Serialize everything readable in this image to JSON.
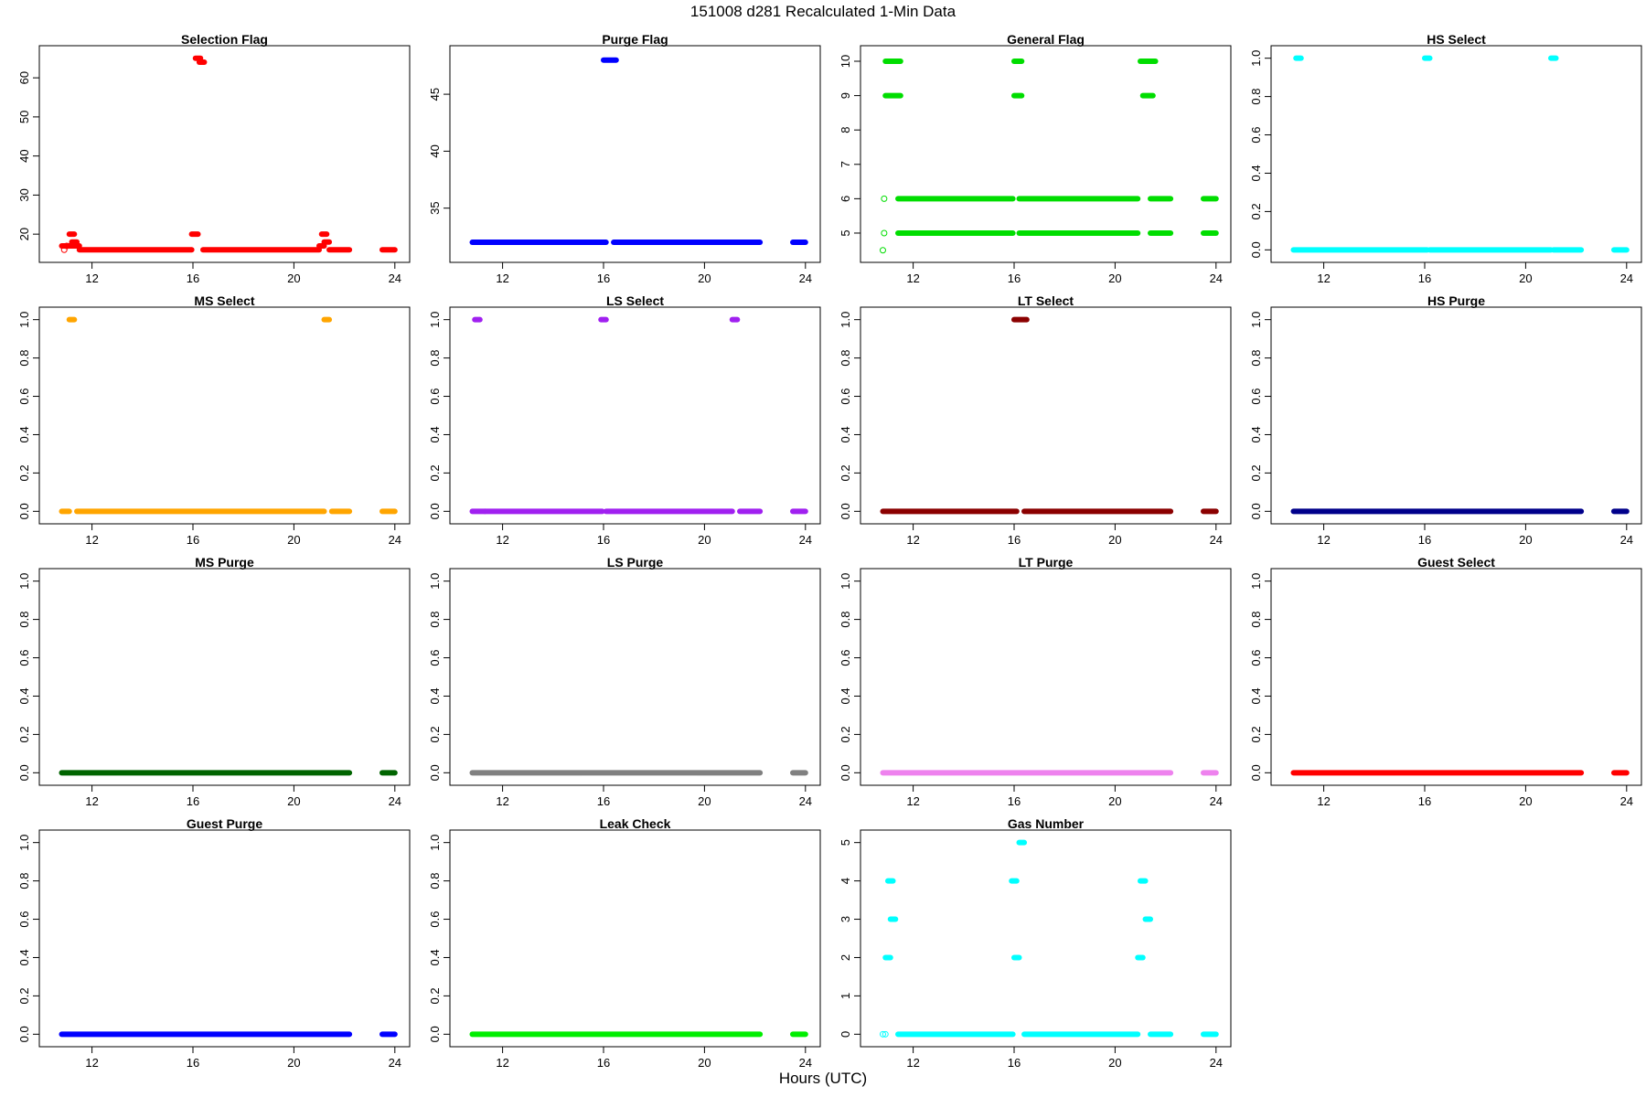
{
  "title": "151008   d281   Recalculated 1-Min Data",
  "xlabel": "Hours (UTC)",
  "chart_data": [
    {
      "type": "scatter",
      "title": "Selection Flag",
      "color": "#ff0000",
      "xlim": [
        10.5,
        24
      ],
      "ylim": [
        15,
        66
      ],
      "x_ticks": [
        12,
        16,
        20,
        24
      ],
      "y_ticks": [
        20,
        30,
        40,
        50,
        60
      ],
      "segments": [
        {
          "x0": 10.8,
          "x1": 11.5,
          "y": 17
        },
        {
          "x0": 11.5,
          "x1": 15.95,
          "y": 16
        },
        {
          "x0": 16.4,
          "x1": 21.0,
          "y": 16
        },
        {
          "x0": 21.4,
          "x1": 22.2,
          "y": 16
        },
        {
          "x0": 23.5,
          "x1": 24.0,
          "y": 16
        },
        {
          "x0": 11.1,
          "x1": 11.3,
          "y": 20
        },
        {
          "x0": 11.2,
          "x1": 11.4,
          "y": 18
        },
        {
          "x0": 15.95,
          "x1": 16.2,
          "y": 20
        },
        {
          "x0": 16.1,
          "x1": 16.3,
          "y": 65
        },
        {
          "x0": 16.25,
          "x1": 16.45,
          "y": 64
        },
        {
          "x0": 21.0,
          "x1": 21.2,
          "y": 17
        },
        {
          "x0": 21.1,
          "x1": 21.3,
          "y": 20
        },
        {
          "x0": 21.2,
          "x1": 21.4,
          "y": 18
        }
      ],
      "points": [
        [
          10.9,
          16
        ],
        [
          11.0,
          17
        ]
      ]
    },
    {
      "type": "scatter",
      "title": "Purge Flag",
      "color": "#0000ff",
      "xlim": [
        10.5,
        24
      ],
      "ylim": [
        31,
        48.5
      ],
      "x_ticks": [
        12,
        16,
        20,
        24
      ],
      "y_ticks": [
        35,
        40,
        45
      ],
      "segments": [
        {
          "x0": 10.8,
          "x1": 16.1,
          "y": 32
        },
        {
          "x0": 16.4,
          "x1": 22.2,
          "y": 32
        },
        {
          "x0": 23.5,
          "x1": 24.0,
          "y": 32
        },
        {
          "x0": 16.0,
          "x1": 16.5,
          "y": 48
        }
      ],
      "points": []
    },
    {
      "type": "scatter",
      "title": "General Flag",
      "color": "#00dd00",
      "xlim": [
        10.5,
        24
      ],
      "ylim": [
        4.4,
        10.2
      ],
      "x_ticks": [
        12,
        16,
        20,
        24
      ],
      "y_ticks": [
        5,
        6,
        7,
        8,
        9,
        10
      ],
      "segments": [
        {
          "x0": 10.9,
          "x1": 11.5,
          "y": 10
        },
        {
          "x0": 10.9,
          "x1": 11.5,
          "y": 9
        },
        {
          "x0": 16.0,
          "x1": 16.3,
          "y": 10
        },
        {
          "x0": 16.0,
          "x1": 16.3,
          "y": 9
        },
        {
          "x0": 21.0,
          "x1": 21.6,
          "y": 10
        },
        {
          "x0": 21.1,
          "x1": 21.5,
          "y": 9
        },
        {
          "x0": 11.4,
          "x1": 15.95,
          "y": 6
        },
        {
          "x0": 16.2,
          "x1": 20.9,
          "y": 6
        },
        {
          "x0": 21.4,
          "x1": 22.2,
          "y": 6
        },
        {
          "x0": 23.5,
          "x1": 24.0,
          "y": 6
        },
        {
          "x0": 11.4,
          "x1": 15.95,
          "y": 5
        },
        {
          "x0": 16.2,
          "x1": 20.9,
          "y": 5
        },
        {
          "x0": 21.4,
          "x1": 22.2,
          "y": 5
        },
        {
          "x0": 23.5,
          "x1": 24.0,
          "y": 5
        }
      ],
      "points": [
        [
          10.85,
          6
        ],
        [
          10.85,
          5
        ],
        [
          10.8,
          4.5
        ]
      ]
    },
    {
      "type": "scatter",
      "title": "HS Select",
      "color": "#00ffff",
      "xlim": [
        10.5,
        24
      ],
      "ylim": [
        -0.02,
        1.02
      ],
      "x_ticks": [
        12,
        16,
        20,
        24
      ],
      "y_ticks": [
        0.0,
        0.2,
        0.4,
        0.6,
        0.8,
        1.0
      ],
      "segments": [
        {
          "x0": 10.8,
          "x1": 16.1,
          "y": 0
        },
        {
          "x0": 16.2,
          "x1": 21.0,
          "y": 0
        },
        {
          "x0": 21.1,
          "x1": 22.2,
          "y": 0
        },
        {
          "x0": 23.5,
          "x1": 24.0,
          "y": 0
        },
        {
          "x0": 10.9,
          "x1": 11.1,
          "y": 1
        },
        {
          "x0": 16.0,
          "x1": 16.2,
          "y": 1
        },
        {
          "x0": 21.0,
          "x1": 21.2,
          "y": 1
        }
      ],
      "points": []
    },
    {
      "type": "scatter",
      "title": "MS Select",
      "color": "#ffa500",
      "xlim": [
        10.5,
        24
      ],
      "ylim": [
        -0.02,
        1.02
      ],
      "x_ticks": [
        12,
        16,
        20,
        24
      ],
      "y_ticks": [
        0.0,
        0.2,
        0.4,
        0.6,
        0.8,
        1.0
      ],
      "segments": [
        {
          "x0": 10.8,
          "x1": 11.1,
          "y": 0
        },
        {
          "x0": 11.4,
          "x1": 21.2,
          "y": 0
        },
        {
          "x0": 21.5,
          "x1": 22.2,
          "y": 0
        },
        {
          "x0": 23.5,
          "x1": 24.0,
          "y": 0
        },
        {
          "x0": 11.1,
          "x1": 11.3,
          "y": 1
        },
        {
          "x0": 21.2,
          "x1": 21.4,
          "y": 1
        }
      ],
      "points": []
    },
    {
      "type": "scatter",
      "title": "LS Select",
      "color": "#a020f0",
      "xlim": [
        10.5,
        24
      ],
      "ylim": [
        -0.02,
        1.02
      ],
      "x_ticks": [
        12,
        16,
        20,
        24
      ],
      "y_ticks": [
        0.0,
        0.2,
        0.4,
        0.6,
        0.8,
        1.0
      ],
      "segments": [
        {
          "x0": 10.8,
          "x1": 11.3,
          "y": 0
        },
        {
          "x0": 11.3,
          "x1": 15.95,
          "y": 0
        },
        {
          "x0": 16.1,
          "x1": 21.1,
          "y": 0
        },
        {
          "x0": 21.4,
          "x1": 22.2,
          "y": 0
        },
        {
          "x0": 23.5,
          "x1": 24.0,
          "y": 0
        },
        {
          "x0": 10.9,
          "x1": 11.1,
          "y": 1
        },
        {
          "x0": 15.9,
          "x1": 16.1,
          "y": 1
        },
        {
          "x0": 21.1,
          "x1": 21.3,
          "y": 1
        }
      ],
      "points": []
    },
    {
      "type": "scatter",
      "title": "LT Select",
      "color": "#8b0000",
      "xlim": [
        10.5,
        24
      ],
      "ylim": [
        -0.02,
        1.02
      ],
      "x_ticks": [
        12,
        16,
        20,
        24
      ],
      "y_ticks": [
        0.0,
        0.2,
        0.4,
        0.6,
        0.8,
        1.0
      ],
      "segments": [
        {
          "x0": 10.8,
          "x1": 16.1,
          "y": 0
        },
        {
          "x0": 16.4,
          "x1": 22.2,
          "y": 0
        },
        {
          "x0": 23.5,
          "x1": 24.0,
          "y": 0
        },
        {
          "x0": 16.0,
          "x1": 16.5,
          "y": 1
        }
      ],
      "points": []
    },
    {
      "type": "scatter",
      "title": "HS Purge",
      "color": "#00008b",
      "xlim": [
        10.5,
        24
      ],
      "ylim": [
        -0.02,
        1.02
      ],
      "x_ticks": [
        12,
        16,
        20,
        24
      ],
      "y_ticks": [
        0.0,
        0.2,
        0.4,
        0.6,
        0.8,
        1.0
      ],
      "segments": [
        {
          "x0": 10.8,
          "x1": 22.2,
          "y": 0
        },
        {
          "x0": 23.5,
          "x1": 24.0,
          "y": 0
        }
      ],
      "points": []
    },
    {
      "type": "scatter",
      "title": "MS Purge",
      "color": "#006400",
      "xlim": [
        10.5,
        24
      ],
      "ylim": [
        -0.02,
        1.02
      ],
      "x_ticks": [
        12,
        16,
        20,
        24
      ],
      "y_ticks": [
        0.0,
        0.2,
        0.4,
        0.6,
        0.8,
        1.0
      ],
      "segments": [
        {
          "x0": 10.8,
          "x1": 22.2,
          "y": 0
        },
        {
          "x0": 23.5,
          "x1": 24.0,
          "y": 0
        }
      ],
      "points": []
    },
    {
      "type": "scatter",
      "title": "LS Purge",
      "color": "#808080",
      "xlim": [
        10.5,
        24
      ],
      "ylim": [
        -0.02,
        1.02
      ],
      "x_ticks": [
        12,
        16,
        20,
        24
      ],
      "y_ticks": [
        0.0,
        0.2,
        0.4,
        0.6,
        0.8,
        1.0
      ],
      "segments": [
        {
          "x0": 10.8,
          "x1": 22.2,
          "y": 0
        },
        {
          "x0": 23.5,
          "x1": 24.0,
          "y": 0
        }
      ],
      "points": []
    },
    {
      "type": "scatter",
      "title": "LT Purge",
      "color": "#ee82ee",
      "xlim": [
        10.5,
        24
      ],
      "ylim": [
        -0.02,
        1.02
      ],
      "x_ticks": [
        12,
        16,
        20,
        24
      ],
      "y_ticks": [
        0.0,
        0.2,
        0.4,
        0.6,
        0.8,
        1.0
      ],
      "segments": [
        {
          "x0": 10.8,
          "x1": 22.2,
          "y": 0
        },
        {
          "x0": 23.5,
          "x1": 24.0,
          "y": 0
        }
      ],
      "points": []
    },
    {
      "type": "scatter",
      "title": "Guest Select",
      "color": "#ff0000",
      "xlim": [
        10.5,
        24
      ],
      "ylim": [
        -0.02,
        1.02
      ],
      "x_ticks": [
        12,
        16,
        20,
        24
      ],
      "y_ticks": [
        0.0,
        0.2,
        0.4,
        0.6,
        0.8,
        1.0
      ],
      "segments": [
        {
          "x0": 10.8,
          "x1": 22.2,
          "y": 0
        },
        {
          "x0": 23.5,
          "x1": 24.0,
          "y": 0
        }
      ],
      "points": []
    },
    {
      "type": "scatter",
      "title": "Guest Purge",
      "color": "#0000ff",
      "xlim": [
        10.5,
        24
      ],
      "ylim": [
        -0.02,
        1.02
      ],
      "x_ticks": [
        12,
        16,
        20,
        24
      ],
      "y_ticks": [
        0.0,
        0.2,
        0.4,
        0.6,
        0.8,
        1.0
      ],
      "segments": [
        {
          "x0": 10.8,
          "x1": 22.2,
          "y": 0
        },
        {
          "x0": 23.5,
          "x1": 24.0,
          "y": 0
        }
      ],
      "points": []
    },
    {
      "type": "scatter",
      "title": "Leak Check",
      "color": "#00ee00",
      "xlim": [
        10.5,
        24
      ],
      "ylim": [
        -0.02,
        1.02
      ],
      "x_ticks": [
        12,
        16,
        20,
        24
      ],
      "y_ticks": [
        0.0,
        0.2,
        0.4,
        0.6,
        0.8,
        1.0
      ],
      "segments": [
        {
          "x0": 10.8,
          "x1": 22.2,
          "y": 0
        },
        {
          "x0": 23.5,
          "x1": 24.0,
          "y": 0
        }
      ],
      "points": []
    },
    {
      "type": "scatter",
      "title": "Gas Number",
      "color": "#00ffff",
      "xlim": [
        10.5,
        24
      ],
      "ylim": [
        -0.1,
        5.1
      ],
      "x_ticks": [
        12,
        16,
        20,
        24
      ],
      "y_ticks": [
        0,
        1,
        2,
        3,
        4,
        5
      ],
      "segments": [
        {
          "x0": 11.4,
          "x1": 15.95,
          "y": 0
        },
        {
          "x0": 16.4,
          "x1": 20.9,
          "y": 0
        },
        {
          "x0": 21.4,
          "x1": 22.2,
          "y": 0
        },
        {
          "x0": 23.5,
          "x1": 24.0,
          "y": 0
        },
        {
          "x0": 10.9,
          "x1": 11.1,
          "y": 2
        },
        {
          "x0": 11.0,
          "x1": 11.2,
          "y": 4
        },
        {
          "x0": 11.1,
          "x1": 11.3,
          "y": 3
        },
        {
          "x0": 15.9,
          "x1": 16.1,
          "y": 4
        },
        {
          "x0": 16.0,
          "x1": 16.2,
          "y": 2
        },
        {
          "x0": 16.2,
          "x1": 16.4,
          "y": 5
        },
        {
          "x0": 20.9,
          "x1": 21.1,
          "y": 2
        },
        {
          "x0": 21.0,
          "x1": 21.2,
          "y": 4
        },
        {
          "x0": 21.2,
          "x1": 21.4,
          "y": 3
        }
      ],
      "points": [
        [
          10.8,
          0
        ],
        [
          10.9,
          0
        ]
      ]
    }
  ]
}
